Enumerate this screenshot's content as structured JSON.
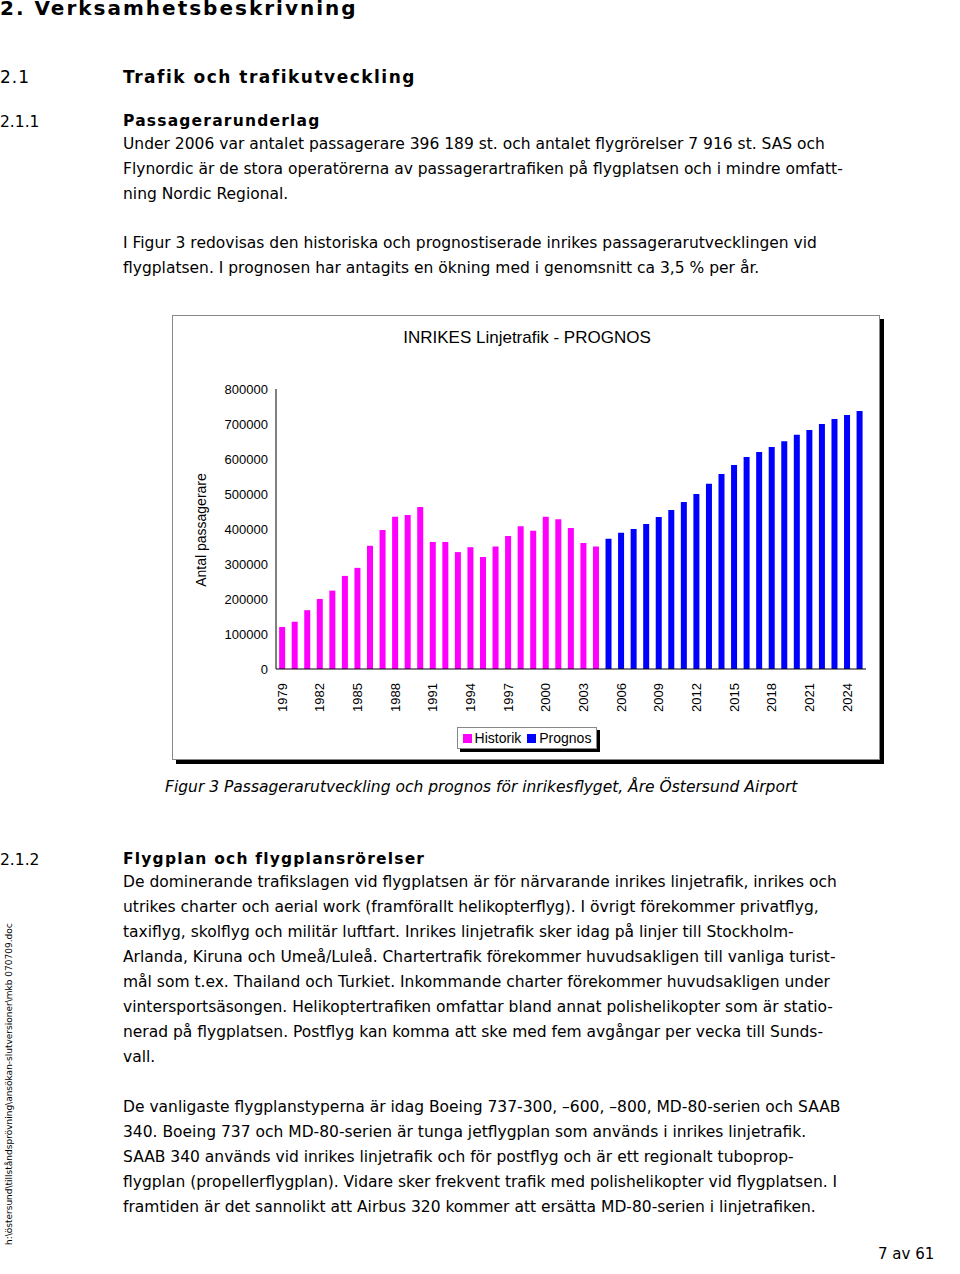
{
  "heading": "2. Verksamhetsbeskrivning",
  "section": {
    "number": "2.1",
    "title": "Trafik och trafikutveckling"
  },
  "subsections": [
    {
      "number": "2.1.1",
      "title": "Passagerarunderlag",
      "paragraphs": [
        [
          "Under 2006 var antalet passagerare 396 189 st. och antalet flygrörelser 7 916 st. SAS och",
          "Flynordic är de stora operatörerna av passagerartrafiken på flygplatsen och i mindre omfatt-",
          "ning Nordic Regional."
        ],
        [
          "I Figur 3 redovisas den historiska och prognostiserade inrikes passagerarutvecklingen vid",
          "flygplatsen. I prognosen har antagits en ökning med i genomsnitt ca 3,5 % per år."
        ]
      ]
    },
    {
      "number": "2.1.2",
      "title": "Flygplan och flygplansrörelser",
      "paragraphs": [
        [
          "De dominerande trafikslagen vid flygplatsen är för närvarande inrikes linjetrafik, inrikes och",
          "utrikes charter och aerial work (framförallt helikopterflyg). I övrigt förekommer privatflyg,",
          "taxiflyg, skolflyg och militär luftfart. Inrikes linjetrafik sker idag på linjer till Stockholm-",
          "Arlanda, Kiruna och Umeå/Luleå. Chartertrafik förekommer huvudsakligen till vanliga turist-",
          "mål som t.ex. Thailand och Turkiet. Inkommande charter förekommer huvudsakligen under",
          "vintersportsäsongen. Helikoptertrafiken omfattar bland annat polishelikopter som är statio-",
          "nerad på flygplatsen. Postflyg kan komma att ske med fem avgångar per vecka till Sunds-",
          "vall."
        ],
        [
          "De vanligaste flygplanstyperna är idag Boeing 737-300, –600, –800, MD-80-serien och SAAB",
          "340. Boeing 737 och MD-80-serien är tunga jetflygplan som används i inrikes linjetrafik.",
          "SAAB 340 används vid inrikes linjetrafik och för postflyg och är ett regionalt tuboprop-",
          "flygplan (propellerflygplan). Vidare sker frekvent trafik med polishelikopter vid flygplatsen. I",
          "framtiden är det sannolikt att Airbus 320 kommer att ersätta MD-80-serien i linjetrafiken."
        ]
      ]
    }
  ],
  "figure_caption": "Figur 3 Passagerarutveckling och prognos för inrikesflyget, Åre Östersund Airport",
  "side_text": "h:\\östersund\\tillståndsprövning\\ansökan-slutversioner\\mkb 070709.doc",
  "page": "7 av 61",
  "chart_data": {
    "type": "bar",
    "title": "INRIKES Linjetrafik - PROGNOS",
    "y_label": "Antal passagerare",
    "categories": [
      "1979",
      null,
      null,
      "1982",
      null,
      null,
      "1985",
      null,
      null,
      "1988",
      null,
      null,
      "1991",
      null,
      null,
      "1994",
      null,
      null,
      "1997",
      null,
      null,
      "2000",
      null,
      null,
      "2003",
      null,
      null,
      "2006",
      null,
      null,
      "2009",
      null,
      null,
      "2012",
      null,
      null,
      "2015",
      null,
      null,
      "2018",
      null,
      null,
      "2021",
      null,
      null,
      "2024",
      null
    ],
    "series": [
      {
        "name": "Historik",
        "color": "#ff00ff",
        "values": [
          120000,
          135000,
          168000,
          200000,
          224000,
          266000,
          289000,
          352000,
          397000,
          435000,
          440000,
          463000,
          363000,
          363000,
          334000,
          348000,
          320000,
          350000,
          380000,
          408000,
          395000,
          435000,
          428000,
          403000,
          360000,
          350000,
          null,
          null,
          null,
          null,
          null,
          null,
          null,
          null,
          null,
          null,
          null,
          null,
          null,
          null,
          null,
          null,
          null,
          null,
          null,
          null,
          null
        ]
      },
      {
        "name": "Prognos",
        "color": "#0000ff",
        "values": [
          null,
          null,
          null,
          null,
          null,
          null,
          null,
          null,
          null,
          null,
          null,
          null,
          null,
          null,
          null,
          null,
          null,
          null,
          null,
          null,
          null,
          null,
          null,
          null,
          null,
          null,
          372000,
          389000,
          400000,
          414000,
          434000,
          454000,
          477000,
          500000,
          529000,
          557000,
          583000,
          606000,
          620000,
          634000,
          651000,
          669000,
          683000,
          700000,
          714000,
          726000,
          737000
        ]
      }
    ],
    "ylim": [
      0,
      800000
    ],
    "yticks": [
      0,
      100000,
      200000,
      300000,
      400000,
      500000,
      600000,
      700000,
      800000
    ],
    "stacked": true,
    "grid": false,
    "legend": "bottom"
  }
}
